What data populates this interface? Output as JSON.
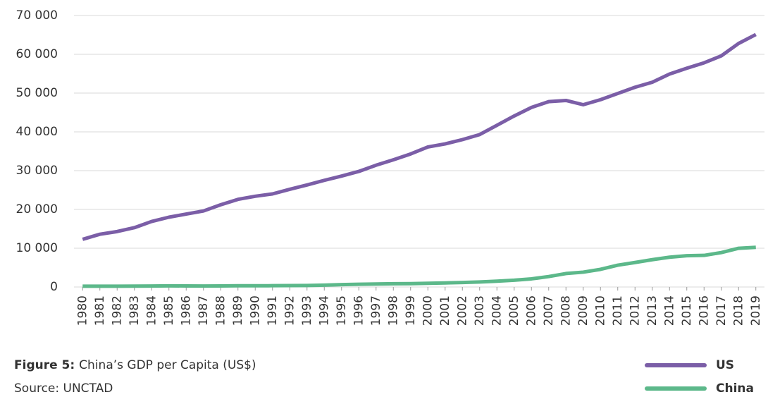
{
  "chart_data": {
    "type": "line",
    "figure_label": "Figure 5:",
    "title": "China’s GDP per Capita (US$)",
    "source": "Source: UNCTAD",
    "categories": [
      "1980",
      "1981",
      "1982",
      "1983",
      "1984",
      "1985",
      "1986",
      "1987",
      "1988",
      "1989",
      "1990",
      "1991",
      "1992",
      "1993",
      "1994",
      "1995",
      "1996",
      "1997",
      "1998",
      "1999",
      "2000",
      "2001",
      "2002",
      "2003",
      "2004",
      "2005",
      "2006",
      "2007",
      "2008",
      "2009",
      "2010",
      "2011",
      "2012",
      "2013",
      "2014",
      "2015",
      "2016",
      "2017",
      "2018",
      "2019"
    ],
    "series": [
      {
        "name": "US",
        "color": "#7b5ea7",
        "values": [
          12300,
          13600,
          14300,
          15300,
          16900,
          18000,
          18800,
          19600,
          21200,
          22600,
          23400,
          24000,
          25200,
          26300,
          27500,
          28600,
          29800,
          31400,
          32800,
          34300,
          36100,
          36900,
          38000,
          39300,
          41700,
          44100,
          46300,
          47800,
          48100,
          47000,
          48300,
          49900,
          51500,
          52800,
          54900,
          56400,
          57800,
          59600,
          62800,
          65100
        ]
      },
      {
        "name": "China",
        "color": "#5cb88a",
        "values": [
          200,
          200,
          200,
          230,
          250,
          290,
          280,
          250,
          280,
          310,
          320,
          330,
          370,
          380,
          470,
          610,
          710,
          780,
          830,
          870,
          960,
          1050,
          1150,
          1290,
          1510,
          1750,
          2100,
          2690,
          3470,
          3830,
          4550,
          5620,
          6320,
          7050,
          7680,
          8070,
          8150,
          8880,
          9980,
          10220
        ]
      }
    ],
    "ylim": [
      0,
      70000
    ],
    "yticks": [
      0,
      {
        "value": 10000,
        "label": "10 000"
      },
      {
        "value": 20000,
        "label": "20 000"
      },
      {
        "value": 30000,
        "label": "30 000"
      },
      {
        "value": 40000,
        "label": "40 000"
      },
      {
        "value": 50000,
        "label": "50 000"
      },
      {
        "value": 60000,
        "label": "60 000"
      },
      {
        "value": 70000,
        "label": "70 000"
      }
    ],
    "grid": true,
    "legend": "bottom-right"
  }
}
